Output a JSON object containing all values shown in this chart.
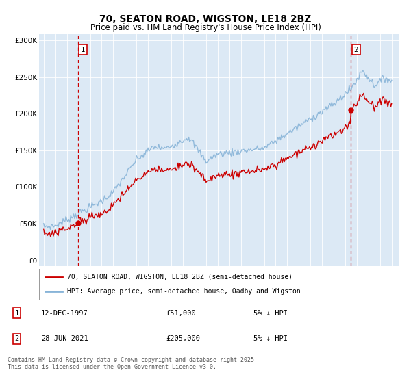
{
  "title": "70, SEATON ROAD, WIGSTON, LE18 2BZ",
  "subtitle": "Price paid vs. HM Land Registry's House Price Index (HPI)",
  "legend_line1": "70, SEATON ROAD, WIGSTON, LE18 2BZ (semi-detached house)",
  "legend_line2": "HPI: Average price, semi-detached house, Oadby and Wigston",
  "annotation1_label": "1",
  "annotation1_date": "12-DEC-1997",
  "annotation1_price": "£51,000",
  "annotation1_note": "5% ↓ HPI",
  "annotation2_label": "2",
  "annotation2_date": "28-JUN-2021",
  "annotation2_price": "£205,000",
  "annotation2_note": "5% ↓ HPI",
  "footer": "Contains HM Land Registry data © Crown copyright and database right 2025.\nThis data is licensed under the Open Government Licence v3.0.",
  "yticks": [
    0,
    50000,
    100000,
    150000,
    200000,
    250000,
    300000
  ],
  "ytick_labels": [
    "£0",
    "£50K",
    "£100K",
    "£150K",
    "£200K",
    "£250K",
    "£300K"
  ],
  "background_color": "#dce9f5",
  "red_line_color": "#cc0000",
  "blue_line_color": "#88b4d8",
  "annotation_box_color": "#cc0000",
  "annotation_vline_color": "#cc0000",
  "annotation_dot_color": "#cc0000",
  "purchase1_year": 1997.95,
  "purchase1_price": 51000,
  "purchase2_year": 2021.49,
  "purchase2_price": 205000
}
